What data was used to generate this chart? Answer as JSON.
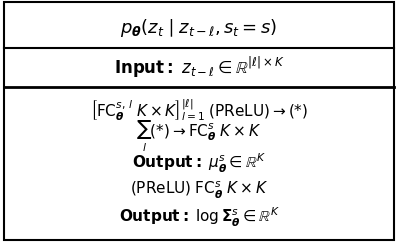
{
  "title_line": "$p_{\\boldsymbol{\\theta}}\\left(z_t \\mid z_{t-\\ell}, s_t = s\\right)$",
  "input_line": "$\\mathbf{Input:}\\; z_{t-\\ell} \\in \\mathbb{R}^{|\\ell| \\times K}$",
  "body_lines": [
    "$\\left[\\mathrm{FC}_{\\boldsymbol{\\theta}}^{s,\\,l}\\; K \\times K\\right]_{l=1}^{|\\ell|}\\; (\\mathrm{PReLU}) \\rightarrow (*)$",
    "$\\sum_l (*) \\rightarrow \\mathrm{FC}_{\\boldsymbol{\\theta}}^{s}\\; K \\times K$",
    "$\\mathbf{Output:}\\; \\mu_{\\boldsymbol{\\theta}}^{s} \\in \\mathbb{R}^{K}$",
    "$(\\mathrm{PReLU})\\; \\mathrm{FC}_{\\boldsymbol{\\theta}}^{s}\\; K \\times K$",
    "$\\mathbf{Output:}\\; \\log \\boldsymbol{\\Sigma}_{\\boldsymbol{\\theta}}^{s} \\in \\mathbb{R}^{K}$"
  ],
  "bg_color": "#ffffff",
  "border_color": "#000000",
  "title_fontsize": 13,
  "input_fontsize": 12,
  "body_fontsize": 11
}
